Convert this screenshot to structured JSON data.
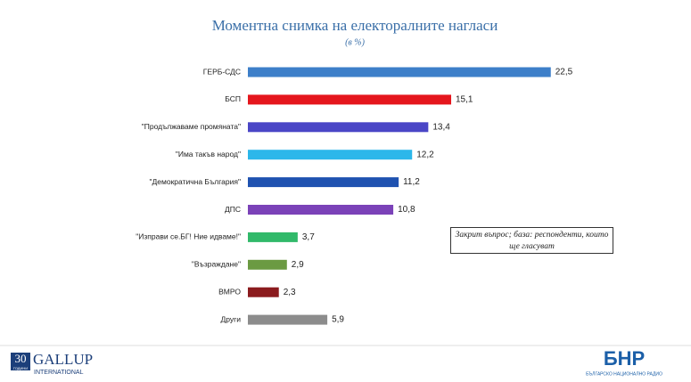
{
  "chart_data": {
    "type": "bar",
    "orientation": "horizontal",
    "title": "Моментна снимка на електоралните нагласи",
    "subtitle": "(в %)",
    "annotation": "Закрит въпрос; база: респонденти, които ще гласуват",
    "categories": [
      "ГЕРБ-СДС",
      "БСП",
      "\"Продължаваме промяната\"",
      "\"Има такъв народ\"",
      "\"Демократична България\"",
      "ДПС",
      "\"Изправи се.БГ! Ние идваме!\"",
      "\"Възраждане\"",
      "ВМРО",
      "Други"
    ],
    "values": [
      22.5,
      15.1,
      13.4,
      12.2,
      11.2,
      10.8,
      3.7,
      2.9,
      2.3,
      5.9
    ],
    "value_labels": [
      "22,5",
      "15,1",
      "13,4",
      "12,2",
      "11,2",
      "10,8",
      "3,7",
      "2,9",
      "2,3",
      "5,9"
    ],
    "colors": [
      "#3d7fc9",
      "#e5161d",
      "#4a46c6",
      "#2cb7ea",
      "#1f52b0",
      "#7b42b8",
      "#31b96a",
      "#6b9a42",
      "#8b1b1e",
      "#8c8c8c"
    ]
  },
  "footer": {
    "left_logo": {
      "number": "30",
      "years": "ГОДИНИ",
      "name": "GALLUP",
      "sub": "INTERNATIONAL"
    },
    "right_logo": {
      "name": "БНР",
      "sub": "БЪЛГАРСКО НАЦИОНАЛНО РАДИО"
    }
  }
}
